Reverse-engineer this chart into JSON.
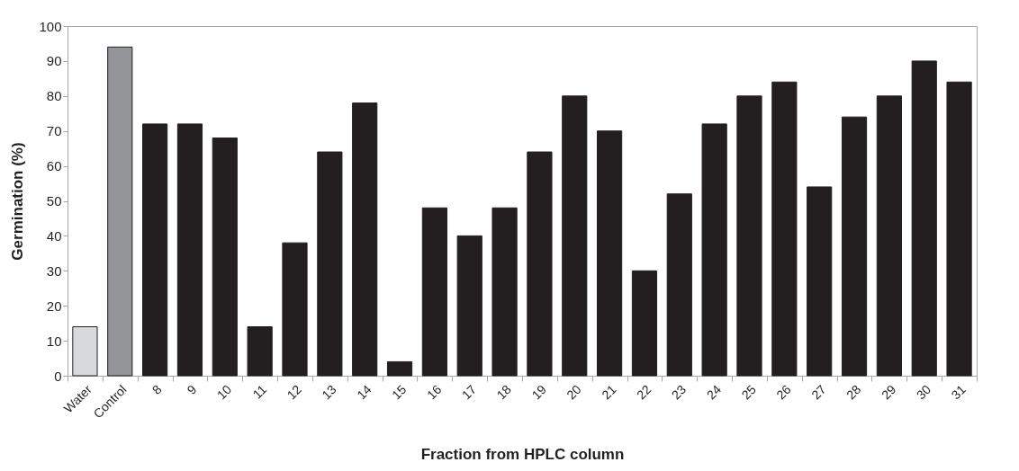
{
  "chart_data": {
    "type": "bar",
    "xlabel": "Fraction from HPLC column",
    "ylabel": "Germination (%)",
    "categories": [
      "Water",
      "Control",
      "8",
      "9",
      "10",
      "11",
      "12",
      "13",
      "14",
      "15",
      "16",
      "17",
      "18",
      "19",
      "20",
      "21",
      "22",
      "23",
      "24",
      "25",
      "26",
      "27",
      "28",
      "29",
      "30",
      "31"
    ],
    "values": [
      14,
      94,
      72,
      72,
      68,
      14,
      38,
      64,
      78,
      4,
      48,
      40,
      48,
      64,
      80,
      70,
      30,
      52,
      72,
      80,
      84,
      54,
      74,
      80,
      90,
      84
    ],
    "colors": [
      "#d9dadc",
      "#939598",
      "#231f20",
      "#231f20",
      "#231f20",
      "#231f20",
      "#231f20",
      "#231f20",
      "#231f20",
      "#231f20",
      "#231f20",
      "#231f20",
      "#231f20",
      "#231f20",
      "#231f20",
      "#231f20",
      "#231f20",
      "#231f20",
      "#231f20",
      "#231f20",
      "#231f20",
      "#231f20",
      "#231f20",
      "#231f20",
      "#231f20",
      "#231f20"
    ],
    "ylim": [
      0,
      100
    ],
    "yticks": [
      0,
      10,
      20,
      30,
      40,
      50,
      60,
      70,
      80,
      90,
      100
    ],
    "grid": false,
    "legend": false
  }
}
